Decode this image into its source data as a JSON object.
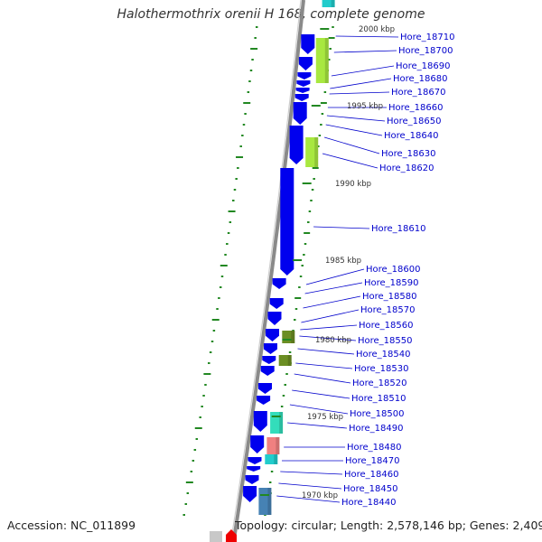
{
  "title": "Halothermothrix orenii H 168, complete genome",
  "accession": "Accession: NC_011899",
  "topology": "Topology: circular; Length: 2,578,146 bp; Genes: 2,409",
  "scale_labels": [
    "2000 kbp",
    "1995 kbp",
    "1990 kbp",
    "1985 kbp",
    "1980 kbp",
    "1975 kbp",
    "1970 kbp"
  ],
  "gene_labels": [
    "Hore_18710",
    "Hore_18700",
    "Hore_18690",
    "Hore_18680",
    "Hore_18670",
    "Hore_18660",
    "Hore_18650",
    "Hore_18640",
    "Hore_18630",
    "Hore_18620",
    "Hore_18610",
    "Hore_18600",
    "Hore_18590",
    "Hore_18580",
    "Hore_18570",
    "Hore_18560",
    "Hore_18550",
    "Hore_18540",
    "Hore_18530",
    "Hore_18520",
    "Hore_18510",
    "Hore_18500",
    "Hore_18490",
    "Hore_18480",
    "Hore_18470",
    "Hore_18460",
    "Hore_18450",
    "Hore_18440"
  ],
  "colors": {
    "backbone": "#8a8a8a",
    "gene_blue": "#0000ee",
    "label_blue": "#0000cc",
    "green_tick": "#228822",
    "lime": "#a8e840",
    "olive": "#6b8e23",
    "teal": "#33ddbb",
    "salmon": "#f08080",
    "cyan": "#22cccc",
    "steel": "#4682b4",
    "red": "#ee0000"
  }
}
